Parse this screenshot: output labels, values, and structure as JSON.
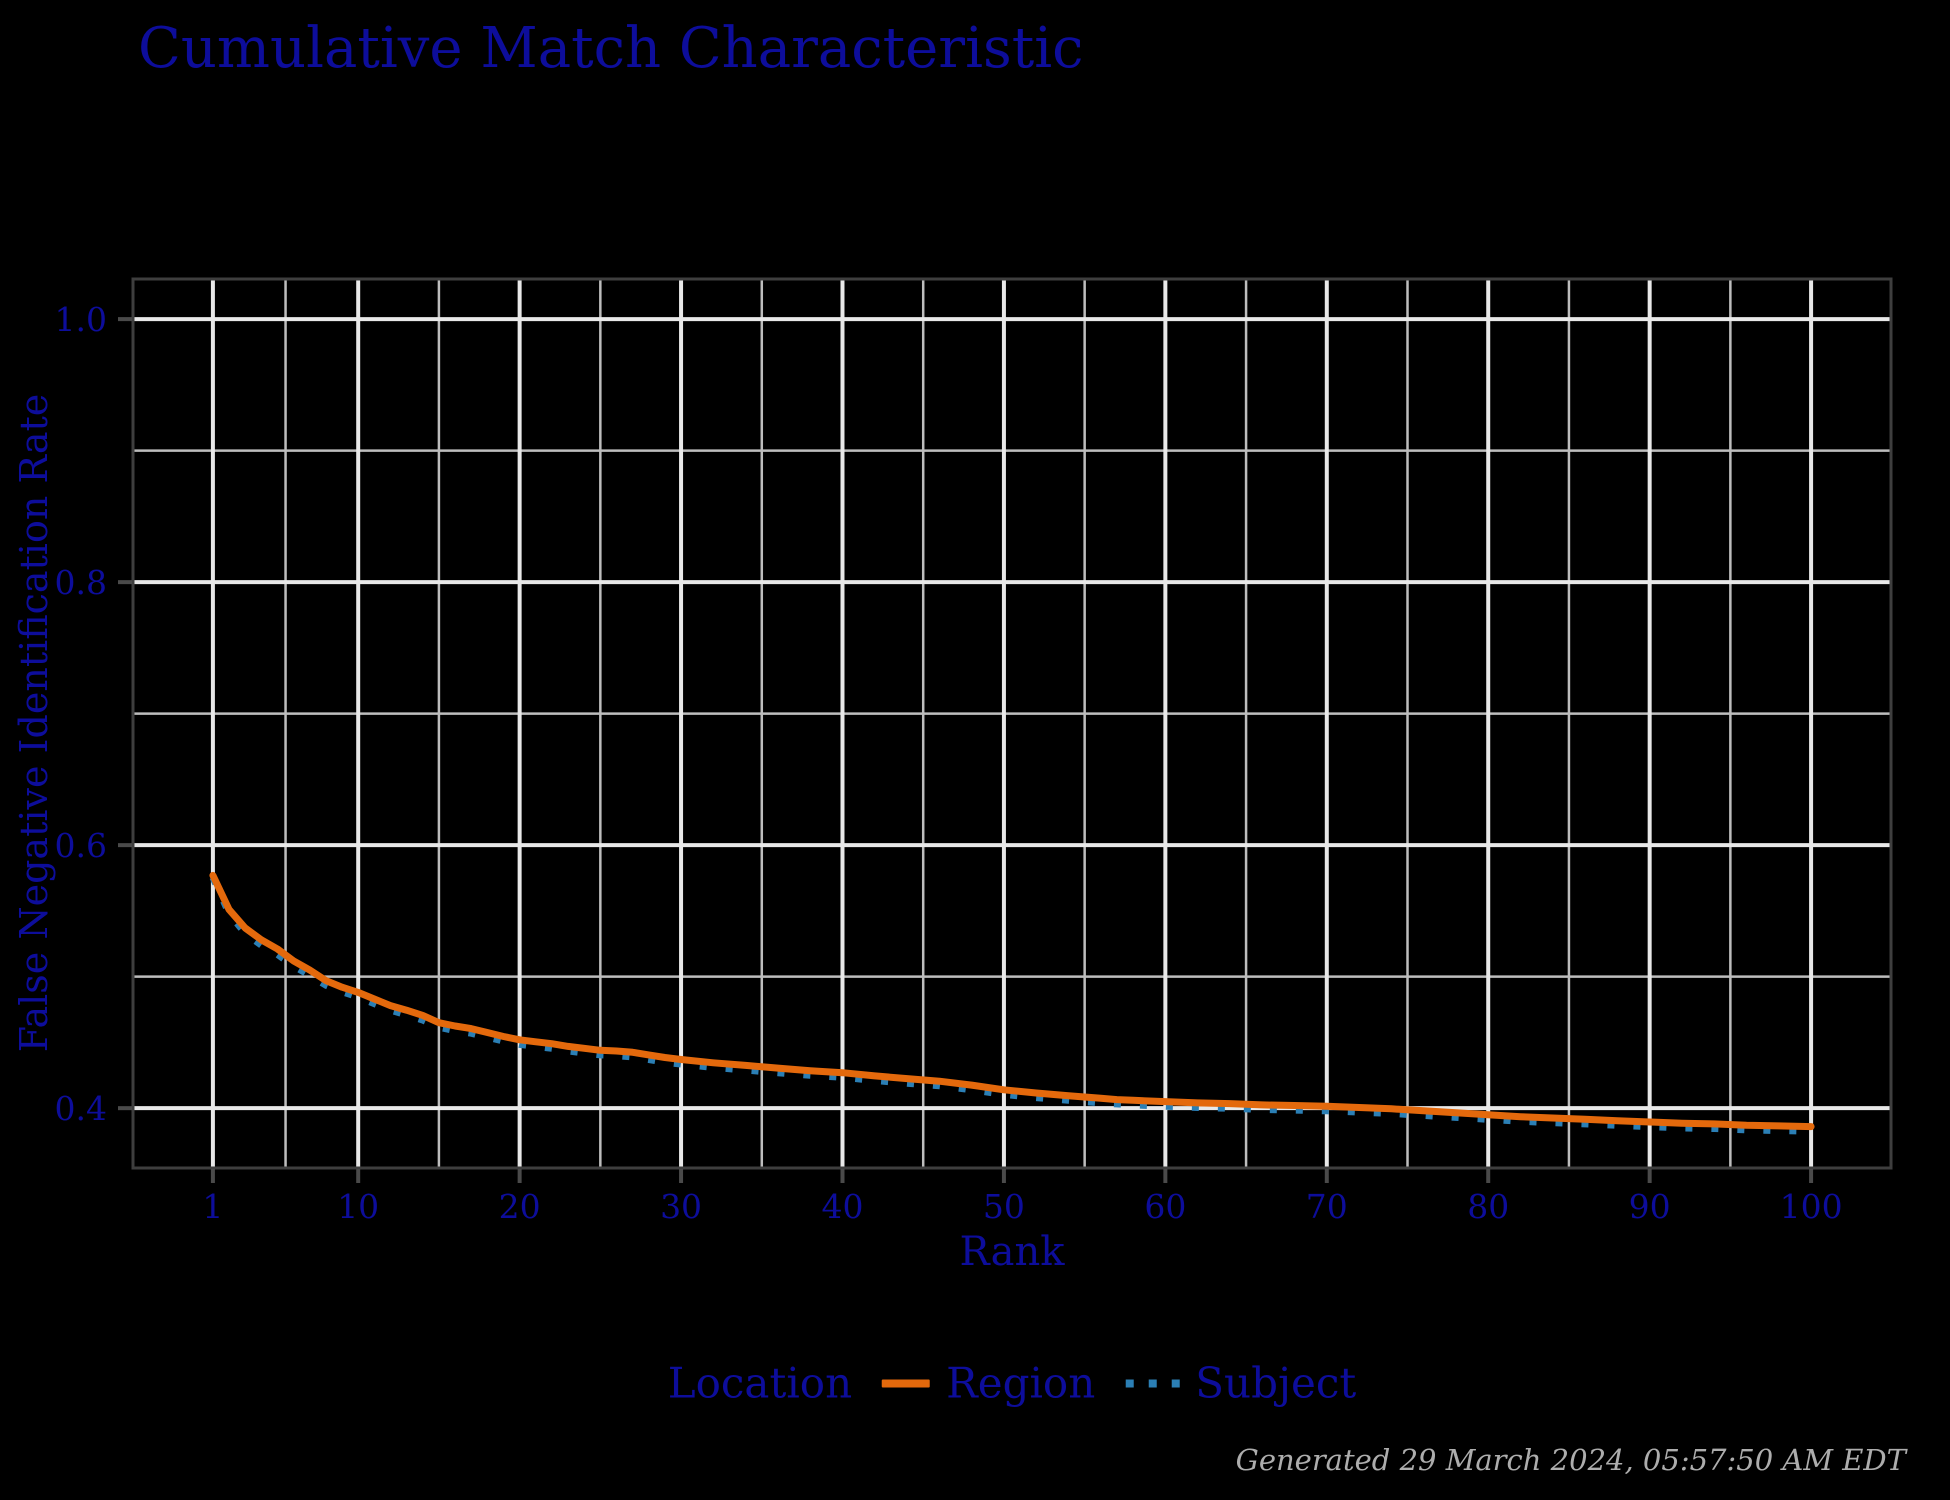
{
  "chart_data": {
    "type": "line",
    "title": "Cumulative Match Characteristic",
    "xlabel": "Rank",
    "ylabel": "False Negative Identification Rate",
    "xlim": [
      -3.95,
      104.95
    ],
    "ylim": [
      0.3545,
      1.0305
    ],
    "x_major_ticks": [
      1,
      10,
      20,
      30,
      40,
      50,
      60,
      70,
      80,
      90,
      100
    ],
    "x_minor_ticks": [
      5.5,
      15,
      25,
      35,
      45,
      55,
      65,
      75,
      85,
      95
    ],
    "y_major_ticks": [
      0.4,
      0.6,
      0.8,
      1.0
    ],
    "y_minor_ticks": [
      0.5,
      0.7,
      0.9
    ],
    "grid": true,
    "legend_position": "bottom",
    "legend_title": "Location",
    "series": [
      {
        "name": "Subject",
        "style": "dotted",
        "color": "#2B7FB5",
        "points": [
          [
            1,
            0.5755
          ],
          [
            2,
            0.548
          ],
          [
            3,
            0.533
          ],
          [
            4,
            0.524
          ],
          [
            5,
            0.517
          ],
          [
            6,
            0.508
          ],
          [
            7,
            0.501
          ],
          [
            8,
            0.4935
          ],
          [
            9,
            0.4885
          ],
          [
            10,
            0.4845
          ],
          [
            11,
            0.4795
          ],
          [
            12,
            0.4745
          ],
          [
            13,
            0.471
          ],
          [
            14,
            0.467
          ],
          [
            15,
            0.4615
          ],
          [
            16,
            0.459
          ],
          [
            17,
            0.457
          ],
          [
            18,
            0.454
          ],
          [
            19,
            0.451
          ],
          [
            20,
            0.4485
          ],
          [
            21,
            0.447
          ],
          [
            22,
            0.4455
          ],
          [
            23,
            0.4435
          ],
          [
            24,
            0.442
          ],
          [
            25,
            0.4405
          ],
          [
            26,
            0.44
          ],
          [
            27,
            0.439
          ],
          [
            28,
            0.437
          ],
          [
            29,
            0.435
          ],
          [
            30,
            0.4335
          ],
          [
            32,
            0.431
          ],
          [
            34,
            0.429
          ],
          [
            36,
            0.427
          ],
          [
            38,
            0.425
          ],
          [
            40,
            0.4235
          ],
          [
            42,
            0.421
          ],
          [
            44,
            0.419
          ],
          [
            46,
            0.417
          ],
          [
            48,
            0.414
          ],
          [
            50,
            0.4105
          ],
          [
            52,
            0.408
          ],
          [
            54,
            0.406
          ],
          [
            56,
            0.404
          ],
          [
            58,
            0.4025
          ],
          [
            60,
            0.4015
          ],
          [
            62,
            0.4005
          ],
          [
            64,
            0.4
          ],
          [
            66,
            0.399
          ],
          [
            68,
            0.3985
          ],
          [
            70,
            0.398
          ],
          [
            72,
            0.397
          ],
          [
            74,
            0.396
          ],
          [
            76,
            0.3945
          ],
          [
            78,
            0.393
          ],
          [
            80,
            0.3915
          ],
          [
            82,
            0.39
          ],
          [
            84,
            0.389
          ],
          [
            86,
            0.388
          ],
          [
            88,
            0.387
          ],
          [
            90,
            0.386
          ],
          [
            92,
            0.385
          ],
          [
            94,
            0.3845
          ],
          [
            96,
            0.3835
          ],
          [
            98,
            0.383
          ],
          [
            100,
            0.3825
          ]
        ]
      },
      {
        "name": "Region",
        "style": "solid",
        "color": "#E4690C",
        "points": [
          [
            1,
            0.577
          ],
          [
            2,
            0.551
          ],
          [
            3,
            0.537
          ],
          [
            4,
            0.528
          ],
          [
            5,
            0.521
          ],
          [
            6,
            0.512
          ],
          [
            7,
            0.505
          ],
          [
            8,
            0.497
          ],
          [
            9,
            0.492
          ],
          [
            10,
            0.488
          ],
          [
            11,
            0.483
          ],
          [
            12,
            0.478
          ],
          [
            13,
            0.4745
          ],
          [
            14,
            0.4705
          ],
          [
            15,
            0.465
          ],
          [
            16,
            0.4625
          ],
          [
            17,
            0.4605
          ],
          [
            18,
            0.4575
          ],
          [
            19,
            0.4545
          ],
          [
            20,
            0.452
          ],
          [
            21,
            0.4505
          ],
          [
            22,
            0.449
          ],
          [
            23,
            0.447
          ],
          [
            24,
            0.4455
          ],
          [
            25,
            0.444
          ],
          [
            26,
            0.4435
          ],
          [
            27,
            0.4425
          ],
          [
            28,
            0.4405
          ],
          [
            29,
            0.4385
          ],
          [
            30,
            0.437
          ],
          [
            32,
            0.4345
          ],
          [
            34,
            0.4325
          ],
          [
            36,
            0.4305
          ],
          [
            38,
            0.4285
          ],
          [
            40,
            0.427
          ],
          [
            42,
            0.4245
          ],
          [
            44,
            0.4225
          ],
          [
            46,
            0.4205
          ],
          [
            48,
            0.4175
          ],
          [
            50,
            0.414
          ],
          [
            52,
            0.4115
          ],
          [
            54,
            0.4095
          ],
          [
            56,
            0.4075
          ],
          [
            57,
            0.4065
          ],
          [
            58,
            0.406
          ],
          [
            60,
            0.405
          ],
          [
            62,
            0.404
          ],
          [
            64,
            0.4035
          ],
          [
            66,
            0.4025
          ],
          [
            68,
            0.402
          ],
          [
            70,
            0.4015
          ],
          [
            72,
            0.4005
          ],
          [
            74,
            0.3995
          ],
          [
            76,
            0.398
          ],
          [
            78,
            0.3965
          ],
          [
            80,
            0.395
          ],
          [
            82,
            0.3935
          ],
          [
            84,
            0.3925
          ],
          [
            86,
            0.3915
          ],
          [
            88,
            0.3905
          ],
          [
            90,
            0.3895
          ],
          [
            92,
            0.3885
          ],
          [
            94,
            0.388
          ],
          [
            96,
            0.387
          ],
          [
            98,
            0.3865
          ],
          [
            100,
            0.386
          ]
        ]
      }
    ],
    "colors": {
      "background": "#000000",
      "panel_border": "#3E3E3E",
      "grid_major": "#E8E8E8",
      "grid_minor": "#BDBDBD",
      "tick_mark": "#4A4A4A",
      "text_navy": "#0D0D9B",
      "footer_gray": "#ADADAD"
    }
  },
  "footer": {
    "generated_text": "Generated 29 March 2024, 05:57:50 AM EDT"
  }
}
